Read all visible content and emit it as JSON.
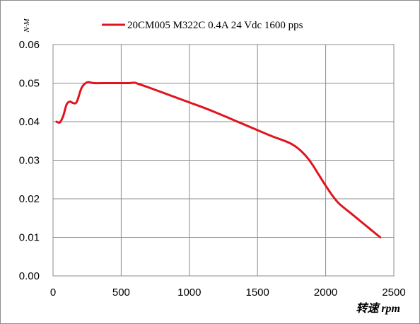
{
  "chart_data": {
    "type": "line",
    "ylabel": "N·M",
    "xlabel": "转速 rpm",
    "xlim": [
      0,
      2500
    ],
    "ylim": [
      0,
      0.06
    ],
    "x_ticks": [
      "0",
      "500",
      "1000",
      "1500",
      "2000",
      "2500"
    ],
    "y_ticks": [
      "0.00",
      "0.01",
      "0.02",
      "0.03",
      "0.04",
      "0.05",
      "0.06"
    ],
    "grid": true,
    "legend_position": "top",
    "series": [
      {
        "name": "20CM005 M322C 0.4A  24 Vdc  1600 pps",
        "color": "#e0141e",
        "points": [
          [
            25,
            0.04
          ],
          [
            50,
            0.0398
          ],
          [
            75,
            0.0415
          ],
          [
            100,
            0.0445
          ],
          [
            125,
            0.0452
          ],
          [
            150,
            0.0448
          ],
          [
            175,
            0.0452
          ],
          [
            210,
            0.0488
          ],
          [
            250,
            0.0502
          ],
          [
            300,
            0.05
          ],
          [
            400,
            0.05
          ],
          [
            500,
            0.05
          ],
          [
            550,
            0.05
          ],
          [
            600,
            0.0501
          ],
          [
            625,
            0.0498
          ],
          [
            700,
            0.0489
          ],
          [
            800,
            0.0476
          ],
          [
            900,
            0.0463
          ],
          [
            1000,
            0.045
          ],
          [
            1100,
            0.0437
          ],
          [
            1200,
            0.0423
          ],
          [
            1300,
            0.0408
          ],
          [
            1400,
            0.0393
          ],
          [
            1500,
            0.0378
          ],
          [
            1600,
            0.0363
          ],
          [
            1700,
            0.035
          ],
          [
            1750,
            0.0342
          ],
          [
            1800,
            0.033
          ],
          [
            1850,
            0.0313
          ],
          [
            1900,
            0.029
          ],
          [
            1950,
            0.0262
          ],
          [
            2000,
            0.0234
          ],
          [
            2050,
            0.0208
          ],
          [
            2100,
            0.0187
          ],
          [
            2200,
            0.0158
          ],
          [
            2300,
            0.0129
          ],
          [
            2400,
            0.01
          ]
        ]
      }
    ]
  }
}
